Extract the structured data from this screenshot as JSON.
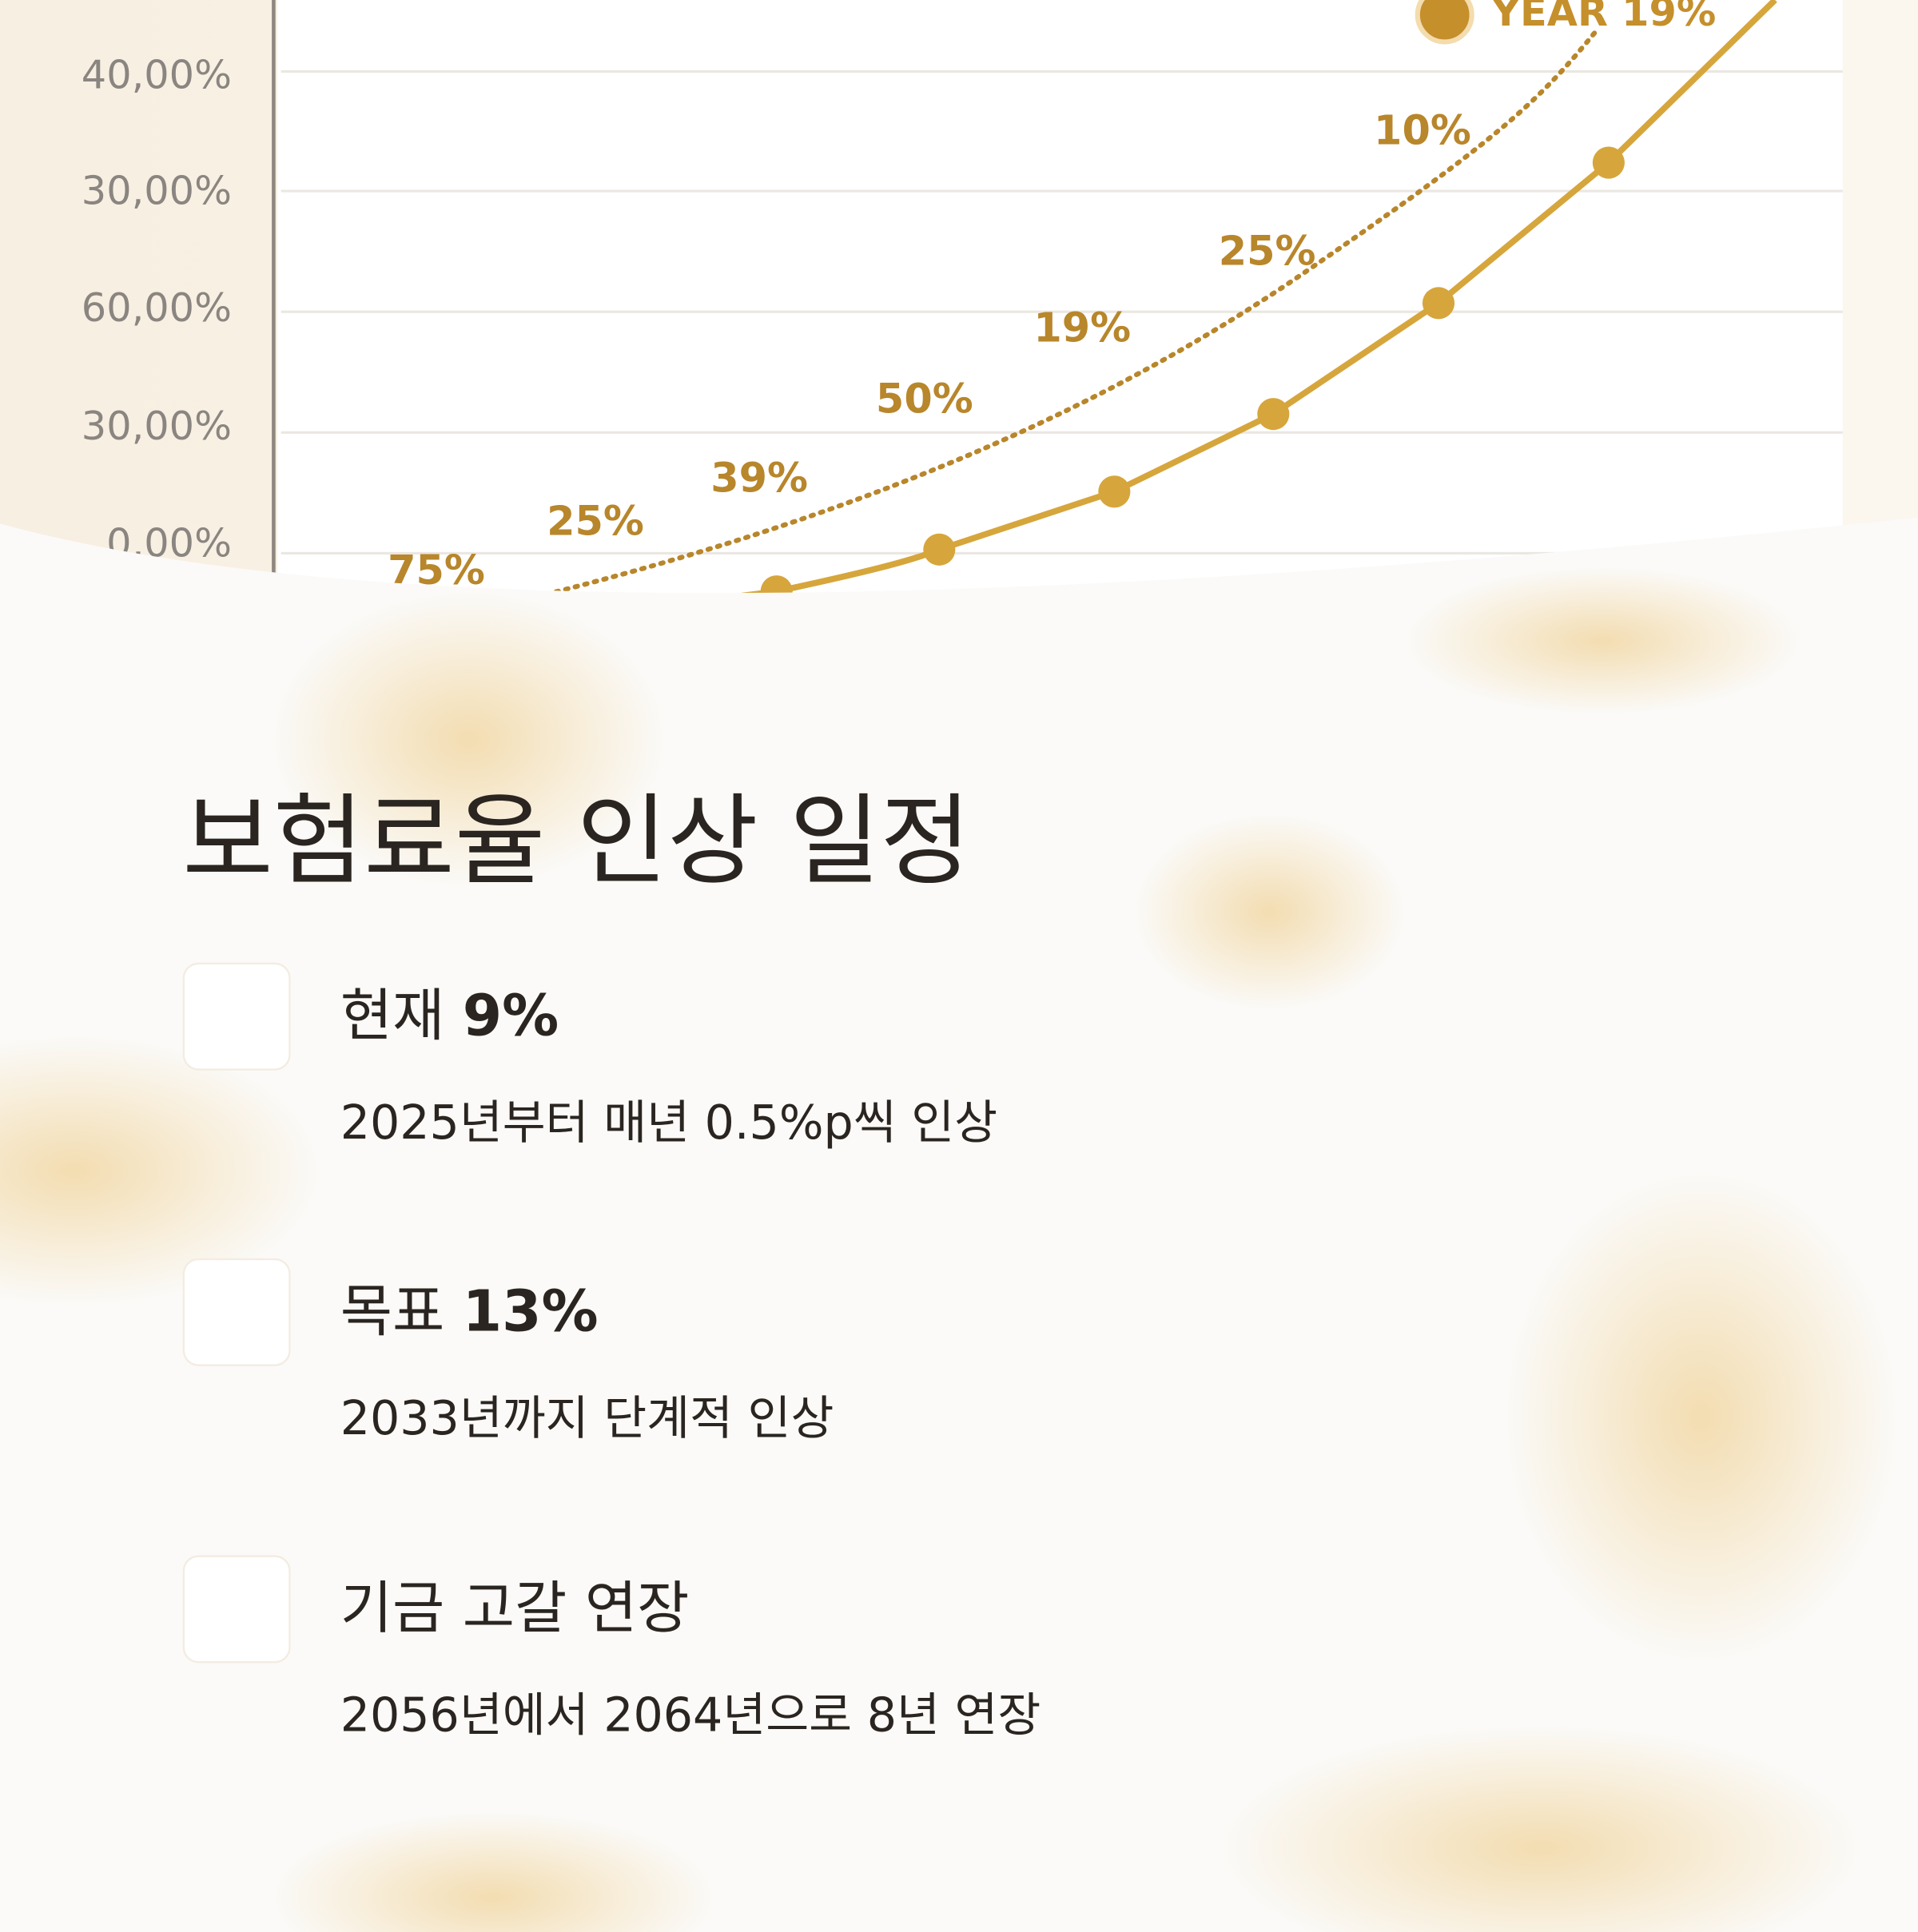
{
  "hero": {
    "axis_labels": [
      "40,00%",
      "30,00%",
      "60,00%",
      "30,00%",
      "0,00%"
    ],
    "point_labels": [
      "75%",
      "25%",
      "39%",
      "50%",
      "19%",
      "25%",
      "10%"
    ],
    "badge": "YEAR 19%"
  },
  "section": {
    "title": "보험료율 인상 일정",
    "items": [
      {
        "title": "현재",
        "highlight": "9%",
        "description": "2025년부터 매년 0.5%p씩 인상"
      },
      {
        "title": "목표",
        "highlight": "13%",
        "description": "2033년까지 단계적 인상"
      },
      {
        "title": "기금 고갈 연장",
        "description": "2056년에서 2064년으로 8년 연장"
      }
    ]
  }
}
